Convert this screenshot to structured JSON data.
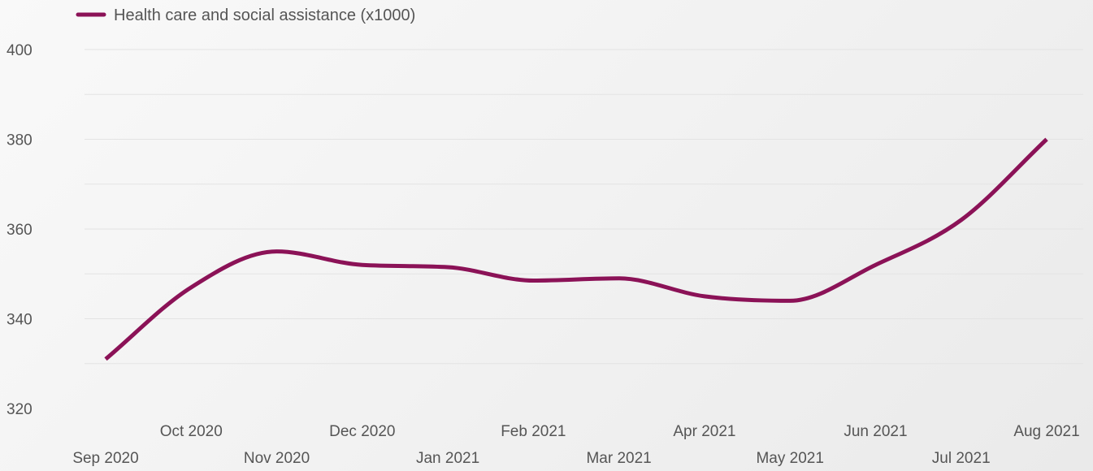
{
  "chart_data": {
    "type": "line",
    "title": "",
    "xlabel": "",
    "ylabel": "",
    "ylim": [
      320,
      400
    ],
    "yticks": [
      320,
      340,
      360,
      380,
      400
    ],
    "grid": true,
    "legend_position": "top-left",
    "x": [
      "Sep 2020",
      "Oct 2020",
      "Nov 2020",
      "Dec 2020",
      "Jan 2021",
      "Feb 2021",
      "Mar 2021",
      "Apr 2021",
      "May 2021",
      "Jun 2021",
      "Jul 2021",
      "Aug 2021"
    ],
    "series": [
      {
        "name": "Health care and social assistance (x1000)",
        "color": "#8b1257",
        "values": [
          331,
          347,
          355,
          352,
          351.5,
          348.5,
          349,
          345,
          344,
          352,
          362,
          380
        ]
      }
    ]
  }
}
